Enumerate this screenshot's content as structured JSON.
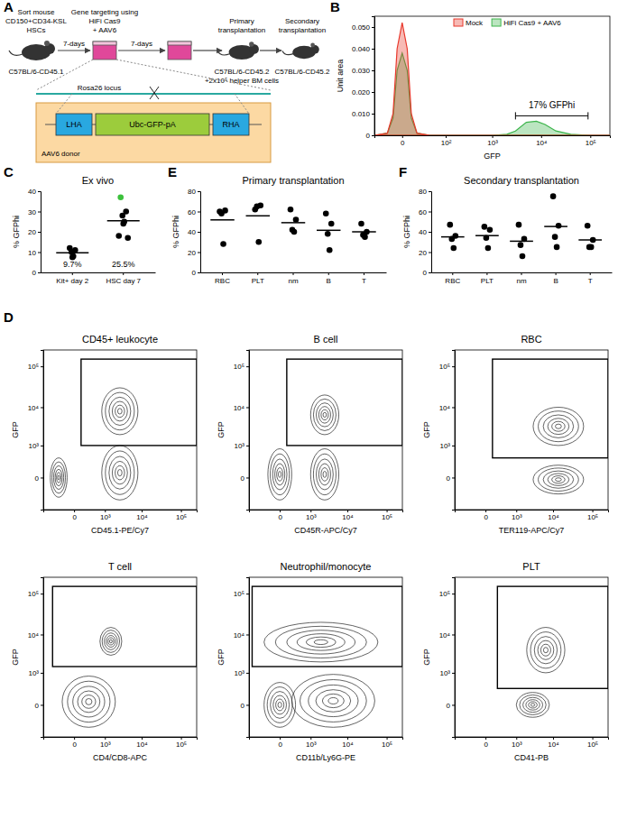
{
  "panel_labels": [
    "A",
    "B",
    "C",
    "D",
    "E",
    "F"
  ],
  "diagram": {
    "steps": [
      {
        "text": [
          "Sort mouse",
          "CD150+CD34-KSL",
          "HSCs"
        ],
        "strain": [
          "C57BL/6-CD45.1"
        ]
      },
      {
        "text": [
          "Gene targeting using",
          "HiFi Cas9",
          "+ AAV6"
        ]
      },
      {
        "text": [
          "Primary",
          "transplantation"
        ],
        "strain": [
          "C57BL/6-CD45.2",
          "+2x10⁵ helper BM cells"
        ]
      },
      {
        "text": [
          "Secondary",
          "transplantation"
        ],
        "strain": [
          "C57BL/6-CD45.2"
        ]
      }
    ],
    "intervals": [
      "7-days",
      "7-days"
    ],
    "locus": "Rosa26 locus",
    "donor": {
      "label": "AAV6 donor",
      "elements": [
        "LHA",
        "Ubc-GFP-pA",
        "RHA"
      ]
    }
  },
  "chart_data": [
    {
      "type": "area",
      "xlabel": "GFP",
      "ylabel": "Unit area",
      "log": "x",
      "legend": "top-right",
      "x": [
        -40,
        -15,
        -8,
        -4,
        0,
        4,
        8,
        15,
        40,
        100,
        500,
        1000,
        2000,
        3000,
        5000,
        8000,
        12000,
        20000,
        40000,
        100000,
        250000
      ],
      "series": [
        {
          "name": "HiFi Cas9 + AAV6",
          "color": "#3cb44b",
          "values": [
            0,
            0.001,
            0.008,
            0.03,
            0.038,
            0.03,
            0.008,
            0.001,
            0,
            0,
            0,
            0,
            0.0005,
            0.002,
            0.006,
            0.0065,
            0.005,
            0.002,
            0.0005,
            0,
            0
          ]
        },
        {
          "name": "Mock",
          "color": "#e8382c",
          "values": [
            0,
            0.001,
            0.01,
            0.04,
            0.052,
            0.04,
            0.01,
            0.001,
            0,
            0,
            0,
            0,
            0,
            0,
            0,
            0,
            0,
            0,
            0,
            0,
            0
          ]
        }
      ],
      "xlim": [
        -40,
        250000
      ],
      "ylim": [
        0,
        0.055
      ],
      "xticks": [
        0,
        {
          "value": 100,
          "label": "10²"
        },
        {
          "value": 1000,
          "label": "10³"
        },
        {
          "value": 10000,
          "label": "10⁴"
        },
        {
          "value": 100000,
          "label": "10⁵"
        }
      ],
      "yticks": [
        0,
        {
          "value": 0.01,
          "label": "0.010"
        },
        {
          "value": 0.02,
          "label": "0.020"
        },
        {
          "value": 0.03,
          "label": "0.030"
        },
        {
          "value": 0.04,
          "label": "0.040"
        },
        {
          "value": 0.05,
          "label": "0.050"
        }
      ],
      "annotation": {
        "text": "17% GFPhi",
        "x": [
          3000,
          90000
        ],
        "y": 0.009
      }
    },
    {
      "type": "dot",
      "title": "Ex vivo",
      "ylabel": "% GFPhi",
      "categories": [
        "Kit+ day 2",
        "HSC day 7"
      ],
      "values": [
        [
          12,
          11,
          10,
          8,
          7.5
        ],
        [
          37,
          30,
          28,
          25,
          24,
          18,
          17
        ]
      ],
      "colors": [
        [
          "#000000",
          "#000000",
          "#000000",
          "#000000",
          "#000000"
        ],
        [
          "#3cc13c",
          "#000000",
          "#000000",
          "#000000",
          "#000000",
          "#000000",
          "#000000"
        ]
      ],
      "means": [
        9.7,
        25.5
      ],
      "mean_labels": [
        "9.7%",
        "25.5%"
      ],
      "ylim": [
        0,
        40
      ],
      "yticks": [
        0,
        10,
        20,
        30,
        40
      ]
    },
    {
      "type": "contour",
      "title": "CD45+ leukocyte",
      "xlabel": "CD45.1-PE/Cy7",
      "ylabel": "GFP",
      "log": true,
      "xlim": [
        -1000,
        250000
      ],
      "ylim": [
        -1000,
        250000
      ],
      "xticks": [
        0,
        {
          "value": 1000,
          "label": "10³"
        },
        {
          "value": 10000,
          "label": "10⁴"
        },
        {
          "value": 100000,
          "label": "10⁵"
        }
      ],
      "yticks": [
        0,
        {
          "value": 1000,
          "label": "10³"
        },
        {
          "value": 10000,
          "label": "10⁴"
        },
        {
          "value": 100000,
          "label": "10⁵"
        }
      ],
      "gate": {
        "x": [
          100,
          250000
        ],
        "y": [
          1000,
          150000
        ]
      },
      "populations": [
        {
          "x": [
            800,
            8000
          ],
          "y": [
            2000,
            30000
          ]
        },
        {
          "x": [
            800,
            8000
          ],
          "y": [
            -500,
            1000
          ]
        },
        {
          "x": [
            -600,
            -100
          ],
          "y": [
            -400,
            400
          ]
        }
      ]
    },
    {
      "type": "contour",
      "title": "B cell",
      "xlabel": "CD45R-APC/Cy7",
      "ylabel": "GFP",
      "log": true,
      "xlim": [
        -1000,
        250000
      ],
      "ylim": [
        -1000,
        250000
      ],
      "xticks": [
        0,
        {
          "value": 1000,
          "label": "10³"
        },
        {
          "value": 10000,
          "label": "10⁴"
        },
        {
          "value": 100000,
          "label": "10⁵"
        }
      ],
      "yticks": [
        0,
        {
          "value": 1000,
          "label": "10³"
        },
        {
          "value": 10000,
          "label": "10⁴"
        },
        {
          "value": 100000,
          "label": "10⁵"
        }
      ],
      "gate": {
        "x": [
          100,
          250000
        ],
        "y": [
          1000,
          150000
        ]
      },
      "populations": [
        {
          "x": [
            1000,
            6000
          ],
          "y": [
            2000,
            20000
          ]
        },
        {
          "x": [
            1000,
            6000
          ],
          "y": [
            -500,
            800
          ]
        },
        {
          "x": [
            -200,
            200
          ],
          "y": [
            -500,
            800
          ]
        }
      ]
    },
    {
      "type": "contour",
      "title": "RBC",
      "xlabel": "TER119-APC/Cy7",
      "ylabel": "GFP",
      "log": true,
      "xlim": [
        -1000,
        250000
      ],
      "ylim": [
        -1000,
        250000
      ],
      "xticks": [
        0,
        {
          "value": 1000,
          "label": "10³"
        },
        {
          "value": 10000,
          "label": "10⁴"
        },
        {
          "value": 100000,
          "label": "10⁵"
        }
      ],
      "yticks": [
        0,
        {
          "value": 1000,
          "label": "10³"
        },
        {
          "value": 10000,
          "label": "10⁴"
        },
        {
          "value": 100000,
          "label": "10⁵"
        }
      ],
      "gate": {
        "x": [
          100,
          250000
        ],
        "y": [
          400,
          150000
        ]
      },
      "populations": [
        {
          "x": [
            3000,
            60000
          ],
          "y": [
            1000,
            10000
          ]
        },
        {
          "x": [
            3000,
            60000
          ],
          "y": [
            -300,
            200
          ]
        }
      ]
    },
    {
      "type": "contour",
      "title": "T cell",
      "xlabel": "CD4/CD8-APC",
      "ylabel": "GFP",
      "log": true,
      "xlim": [
        -1000,
        250000
      ],
      "ylim": [
        -1000,
        250000
      ],
      "xticks": [
        0,
        {
          "value": 1000,
          "label": "10³"
        },
        {
          "value": 10000,
          "label": "10⁴"
        },
        {
          "value": 100000,
          "label": "10⁵"
        }
      ],
      "yticks": [
        0,
        {
          "value": 1000,
          "label": "10³"
        },
        {
          "value": 10000,
          "label": "10⁴"
        },
        {
          "value": 100000,
          "label": "10⁵"
        }
      ],
      "gate": {
        "x": [
          -500,
          250000
        ],
        "y": [
          1500,
          150000
        ]
      },
      "populations": [
        {
          "x": [
            700,
            3000
          ],
          "y": [
            3000,
            15000
          ]
        },
        {
          "x": [
            -200,
            2000
          ],
          "y": [
            -500,
            800
          ]
        }
      ]
    },
    {
      "type": "contour",
      "title": "Neutrophil/monocyte",
      "xlabel": "CD11b/Ly6G-PE",
      "ylabel": "GFP",
      "log": true,
      "xlim": [
        -1000,
        250000
      ],
      "ylim": [
        -1000,
        250000
      ],
      "xticks": [
        0,
        {
          "value": 1000,
          "label": "10³"
        },
        {
          "value": 10000,
          "label": "10⁴"
        },
        {
          "value": 100000,
          "label": "10⁵"
        }
      ],
      "yticks": [
        0,
        {
          "value": 1000,
          "label": "10³"
        },
        {
          "value": 10000,
          "label": "10⁴"
        },
        {
          "value": 100000,
          "label": "10⁵"
        }
      ],
      "gate": {
        "x": [
          -800,
          250000
        ],
        "y": [
          1500,
          150000
        ]
      },
      "populations": [
        {
          "x": [
            -300,
            60000
          ],
          "y": [
            2000,
            20000
          ]
        },
        {
          "x": [
            200,
            50000
          ],
          "y": [
            -500,
            900
          ]
        },
        {
          "x": [
            -300,
            300
          ],
          "y": [
            -500,
            500
          ]
        }
      ]
    },
    {
      "type": "contour",
      "title": "PLT",
      "xlabel": "CD41-PB",
      "ylabel": "GFP",
      "log": true,
      "xlim": [
        -1000,
        250000
      ],
      "ylim": [
        -1000,
        250000
      ],
      "xticks": [
        0,
        {
          "value": 1000,
          "label": "10³"
        },
        {
          "value": 10000,
          "label": "10⁴"
        },
        {
          "value": 100000,
          "label": "10⁵"
        }
      ],
      "yticks": [
        0,
        {
          "value": 1000,
          "label": "10³"
        },
        {
          "value": 10000,
          "label": "10⁴"
        },
        {
          "value": 100000,
          "label": "10⁵"
        }
      ],
      "gate": {
        "x": [
          200,
          250000
        ],
        "y": [
          300,
          150000
        ]
      },
      "populations": [
        {
          "x": [
            2000,
            20000
          ],
          "y": [
            1000,
            15000
          ]
        },
        {
          "x": [
            1000,
            8000
          ],
          "y": [
            -200,
            200
          ]
        }
      ]
    },
    {
      "type": "dot",
      "title": "Primary transplantation",
      "ylabel": "% GFPhi",
      "color": "#000000",
      "categories": [
        "RBC",
        "PLT",
        "nm",
        "B",
        "T"
      ],
      "values": [
        [
          60,
          61,
          58,
          28
        ],
        [
          62,
          66,
          65,
          30
        ],
        [
          62,
          52,
          42,
          40
        ],
        [
          58,
          48,
          38,
          22
        ],
        [
          48,
          40,
          37,
          35
        ]
      ],
      "means": [
        51.75,
        55.75,
        49,
        41.5,
        40
      ],
      "ylim": [
        0,
        80
      ],
      "yticks": [
        0,
        20,
        40,
        60,
        80
      ]
    },
    {
      "type": "dot",
      "title": "Secondary transplantation",
      "ylabel": "% GFPhi",
      "color": "#000000",
      "categories": [
        "RBC",
        "PLT",
        "nm",
        "B",
        "T"
      ],
      "values": [
        [
          47,
          36,
          33,
          24
        ],
        [
          45,
          42,
          34,
          24
        ],
        [
          47,
          33,
          27,
          16
        ],
        [
          75,
          46,
          35,
          25
        ],
        [
          46,
          32,
          25,
          25
        ]
      ],
      "means": [
        35,
        36.25,
        30.75,
        45.25,
        32
      ],
      "ylim": [
        0,
        80
      ],
      "yticks": [
        0,
        20,
        40,
        60,
        80
      ]
    }
  ]
}
